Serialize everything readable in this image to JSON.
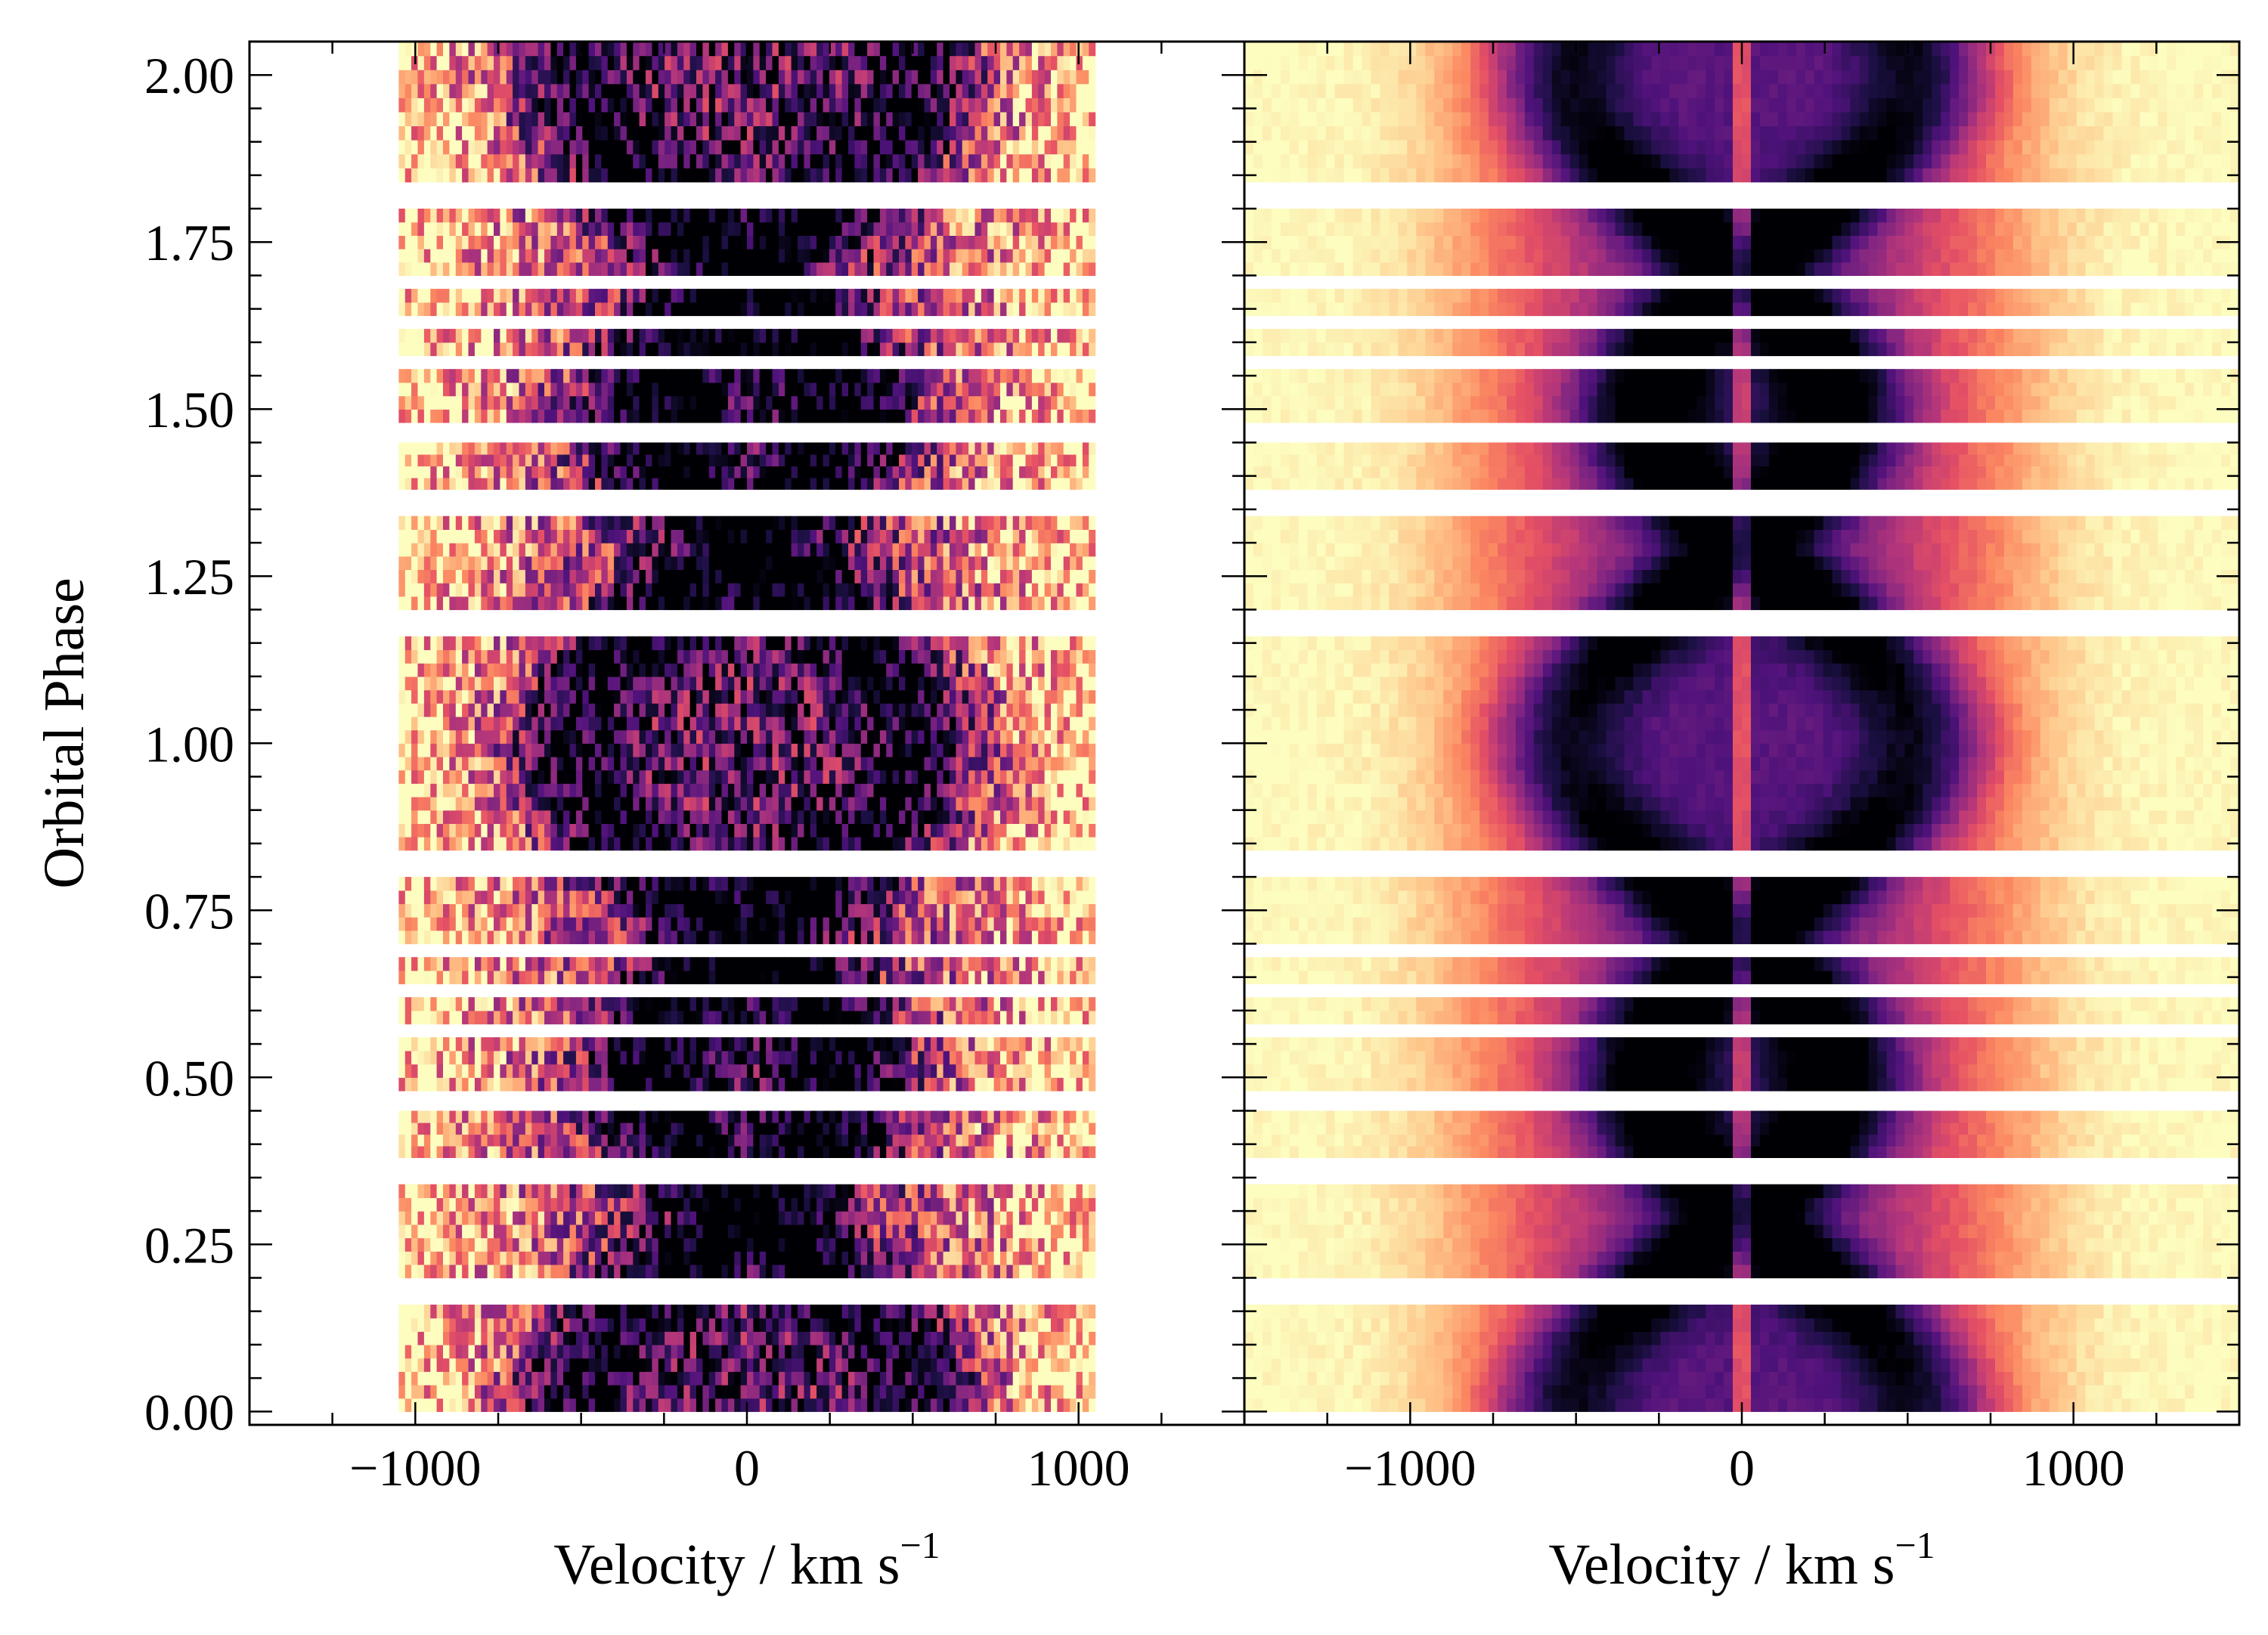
{
  "chart_data": {
    "type": "heatmap",
    "title": "",
    "ylabel": "Orbital Phase",
    "ylim": [
      -0.02,
      2.05
    ],
    "yticks": [
      0.0,
      0.25,
      0.5,
      0.75,
      1.0,
      1.25,
      1.5,
      1.75,
      2.0
    ],
    "ytick_labels": [
      "0.00",
      "0.25",
      "0.50",
      "0.75",
      "1.00",
      "1.25",
      "1.50",
      "1.75",
      "2.00"
    ],
    "phase_bands": [
      [
        0.0,
        0.16
      ],
      [
        0.2,
        0.34
      ],
      [
        0.38,
        0.45
      ],
      [
        0.48,
        0.56
      ],
      [
        0.58,
        0.62
      ],
      [
        0.64,
        0.68
      ],
      [
        0.7,
        0.8
      ],
      [
        0.84,
        1.16
      ],
      [
        1.2,
        1.34
      ],
      [
        1.38,
        1.45
      ],
      [
        1.48,
        1.56
      ],
      [
        1.58,
        1.62
      ],
      [
        1.64,
        1.68
      ],
      [
        1.7,
        1.8
      ],
      [
        1.84,
        2.05
      ]
    ],
    "panels": [
      {
        "name": "observed",
        "xlabel": "Velocity / km s",
        "xlabel_sup": "−1",
        "xlim": [
          -1500,
          1500
        ],
        "xticks": [
          -1000,
          0,
          1000
        ],
        "xtick_labels": [
          "−1000",
          "0",
          "1000"
        ],
        "data_extent": [
          -1050,
          1050
        ],
        "central_spike": false,
        "noise": 0.35
      },
      {
        "name": "model",
        "xlabel": "Velocity / km s",
        "xlabel_sup": "−1",
        "xlim": [
          -1500,
          1500
        ],
        "xticks": [
          -1000,
          0,
          1000
        ],
        "xtick_labels": [
          "−1000",
          "0",
          "1000"
        ],
        "data_extent": [
          -1500,
          1500
        ],
        "central_spike": true,
        "noise": 0.03
      }
    ],
    "colormap": [
      "#000004",
      "#1c1044",
      "#4f127b",
      "#812581",
      "#b5367a",
      "#e55064",
      "#fb8761",
      "#fec287",
      "#fcfdbf"
    ]
  }
}
